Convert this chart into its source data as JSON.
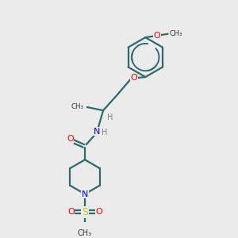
{
  "background_color": "#ebebeb",
  "bond_color": "#2d6b6b",
  "N_color": "#0000ff",
  "O_color": "#ff0000",
  "S_color": "#cccc00",
  "C_color": "#333333",
  "H_color": "#808080",
  "figsize": [
    3.0,
    3.0
  ],
  "dpi": 100,
  "xlim": [
    0,
    10
  ],
  "ylim": [
    0,
    10
  ]
}
